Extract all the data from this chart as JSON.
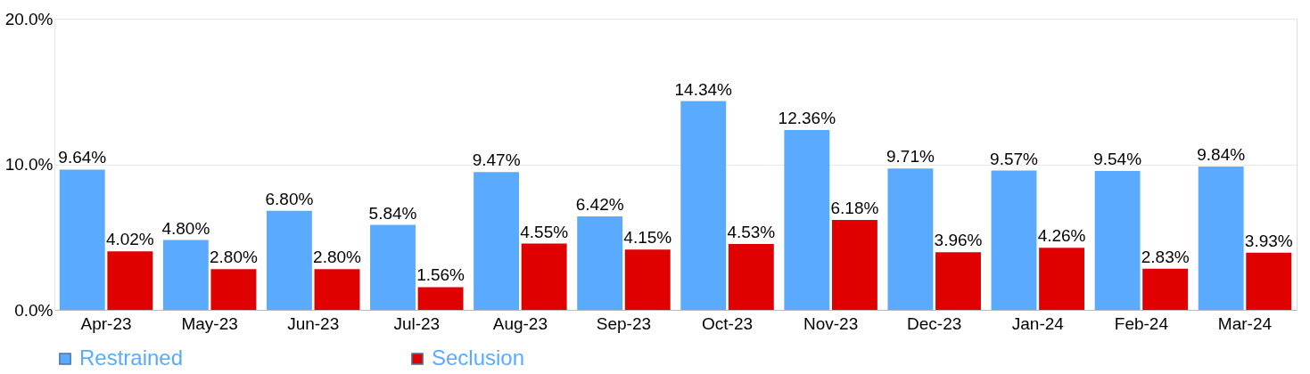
{
  "chart_data": {
    "type": "bar",
    "categories": [
      "Apr-23",
      "May-23",
      "Jun-23",
      "Jul-23",
      "Aug-23",
      "Sep-23",
      "Oct-23",
      "Nov-23",
      "Dec-23",
      "Jan-24",
      "Feb-24",
      "Mar-24"
    ],
    "series": [
      {
        "name": "Restrained",
        "color": "#5aabff",
        "values": [
          9.64,
          4.8,
          6.8,
          5.84,
          9.47,
          6.42,
          14.34,
          12.36,
          9.71,
          9.57,
          9.54,
          9.84
        ],
        "value_labels": [
          "9.64%",
          "4.80%",
          "6.80%",
          "5.84%",
          "9.47%",
          "6.42%",
          "14.34%",
          "12.36%",
          "9.71%",
          "9.57%",
          "9.54%",
          "9.84%"
        ]
      },
      {
        "name": "Seclusion",
        "color": "#e00000",
        "values": [
          4.02,
          2.8,
          2.8,
          1.56,
          4.55,
          4.15,
          4.53,
          6.18,
          3.96,
          4.26,
          2.83,
          3.93
        ],
        "value_labels": [
          "4.02%",
          "2.80%",
          "2.80%",
          "1.56%",
          "4.55%",
          "4.15%",
          "4.53%",
          "6.18%",
          "3.96%",
          "4.26%",
          "2.83%",
          "3.93%"
        ]
      }
    ],
    "ylim": [
      0,
      20
    ],
    "yticks": [
      {
        "value": 0,
        "label": "0.0%"
      },
      {
        "value": 10,
        "label": "10.0%"
      },
      {
        "value": 20,
        "label": "20.0%"
      }
    ],
    "grid": "y",
    "legend": "bottom"
  }
}
